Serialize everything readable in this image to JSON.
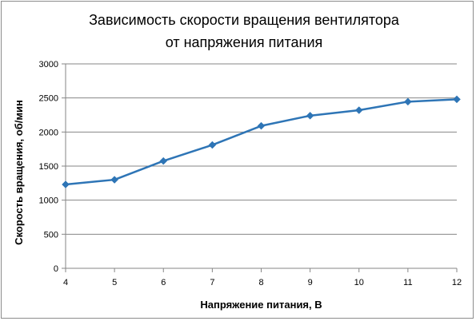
{
  "chart_data": {
    "type": "line",
    "title": "Зависимость скорости вращения вентилятора от напряжения питания",
    "title_lines": [
      "Зависимость скорости вращения вентилятора",
      "от напряжения питания"
    ],
    "xlabel": "Напряжение питания, В",
    "ylabel": "Скорость вращения, об/мин",
    "x": [
      4,
      5,
      6,
      7,
      8,
      9,
      10,
      11,
      12
    ],
    "x_ticks": [
      "4",
      "5",
      "6",
      "7",
      "8",
      "9",
      "10",
      "11",
      "12"
    ],
    "y_ticks": [
      "0",
      "500",
      "1000",
      "1500",
      "2000",
      "2500",
      "3000"
    ],
    "xlim": [
      4,
      12
    ],
    "ylim": [
      0,
      3000
    ],
    "grid": true,
    "legend": "none",
    "series": [
      {
        "values": [
          1230,
          1300,
          1575,
          1810,
          2090,
          2240,
          2320,
          2445,
          2480
        ],
        "color": "#2e75b6",
        "marker": "diamond"
      }
    ]
  }
}
